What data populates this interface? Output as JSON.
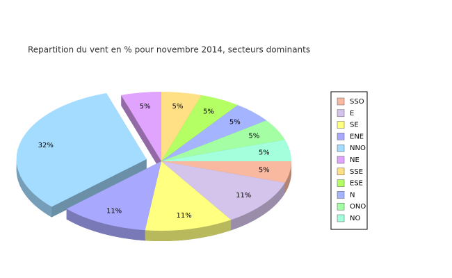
{
  "chart_data": {
    "type": "pie3d",
    "title": "Repartition du vent en % pour novembre 2014, secteurs dominants",
    "categories": [
      "SSO",
      "E",
      "SE",
      "ENE",
      "NNO",
      "NE",
      "SSE",
      "ESE",
      "N",
      "ONO",
      "NO"
    ],
    "values": [
      5,
      11,
      11,
      11,
      32,
      5,
      5,
      5,
      5,
      5,
      5
    ],
    "value_labels": [
      "5%",
      "11%",
      "11%",
      "11%",
      "32%",
      "5%",
      "5%",
      "5%",
      "5%",
      "5%",
      "5%"
    ],
    "colors": [
      "#f9b8a0",
      "#d4c4ec",
      "#ffff80",
      "#a8a8ff",
      "#a4dcff",
      "#e0a4ff",
      "#ffe084",
      "#b4ff64",
      "#a4b4ff",
      "#a4ffa4",
      "#a4ffdc"
    ],
    "exploded": "NNO",
    "legend": "right"
  }
}
